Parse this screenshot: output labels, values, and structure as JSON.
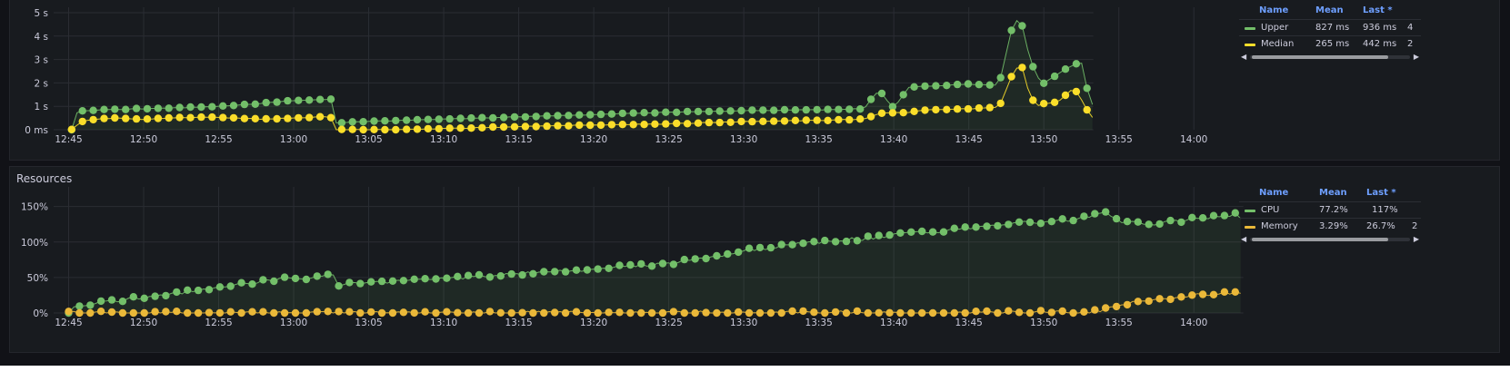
{
  "chart_data": [
    {
      "type": "line",
      "panel": "latency",
      "title": "",
      "xlabel": "",
      "ylabel": "",
      "x_ticks": [
        "12:45",
        "12:50",
        "12:55",
        "13:00",
        "13:05",
        "13:10",
        "13:15",
        "13:20",
        "13:25",
        "13:30",
        "13:35",
        "13:40",
        "13:45",
        "13:50",
        "13:55",
        "14:00"
      ],
      "y_ticks": [
        "0 ms",
        "1 s",
        "2 s",
        "3 s",
        "4 s",
        "5 s"
      ],
      "ylim": [
        0,
        5
      ],
      "y_unit": "s",
      "xlim_minutes": [
        -1,
        78.5
      ],
      "grid": true,
      "legend_placement": "right",
      "series": [
        {
          "name": "Upper",
          "color": "#73bf69",
          "mean": "827 ms",
          "last": "936 ms",
          "last_overflow": "4",
          "points": [
            [
              0.2,
              0.0
            ],
            [
              0.6,
              0.8
            ],
            [
              2,
              0.85
            ],
            [
              5,
              0.9
            ],
            [
              8,
              0.95
            ],
            [
              10,
              1.0
            ],
            [
              12,
              1.08
            ],
            [
              14,
              1.2
            ],
            [
              16,
              1.28
            ],
            [
              17.5,
              1.3
            ],
            [
              17.8,
              0.3
            ],
            [
              20,
              0.35
            ],
            [
              25,
              0.45
            ],
            [
              30,
              0.55
            ],
            [
              35,
              0.65
            ],
            [
              40,
              0.75
            ],
            [
              45,
              0.82
            ],
            [
              50,
              0.85
            ],
            [
              53,
              0.9
            ],
            [
              54,
              1.7
            ],
            [
              54.5,
              1.3
            ],
            [
              55,
              0.92
            ],
            [
              56,
              1.8
            ],
            [
              57,
              1.85
            ],
            [
              60,
              1.95
            ],
            [
              62,
              1.9
            ],
            [
              63,
              4.7
            ],
            [
              63.5,
              4.6
            ],
            [
              64,
              3.2
            ],
            [
              64.5,
              2.3
            ],
            [
              65,
              2.0
            ],
            [
              66,
              2.4
            ],
            [
              67,
              2.8
            ],
            [
              67.5,
              2.9
            ],
            [
              68,
              1.4
            ],
            [
              68.3,
              1.0
            ]
          ]
        },
        {
          "name": "Median",
          "color": "#fade2a",
          "mean": "265 ms",
          "last": "442 ms",
          "last_overflow": "2",
          "points": [
            [
              0.2,
              0.0
            ],
            [
              1,
              0.4
            ],
            [
              3,
              0.5
            ],
            [
              5,
              0.45
            ],
            [
              7,
              0.5
            ],
            [
              9,
              0.55
            ],
            [
              11,
              0.5
            ],
            [
              13,
              0.45
            ],
            [
              15,
              0.5
            ],
            [
              17,
              0.55
            ],
            [
              17.5,
              0.5
            ],
            [
              17.8,
              0.0
            ],
            [
              22,
              0.0
            ],
            [
              25,
              0.05
            ],
            [
              28,
              0.1
            ],
            [
              35,
              0.2
            ],
            [
              40,
              0.25
            ],
            [
              45,
              0.35
            ],
            [
              50,
              0.4
            ],
            [
              53,
              0.45
            ],
            [
              54,
              0.7
            ],
            [
              56,
              0.75
            ],
            [
              57,
              0.85
            ],
            [
              60,
              0.9
            ],
            [
              62,
              0.95
            ],
            [
              63,
              2.5
            ],
            [
              63.5,
              2.8
            ],
            [
              64,
              1.6
            ],
            [
              64.5,
              1.0
            ],
            [
              65,
              1.1
            ],
            [
              66,
              1.2
            ],
            [
              67,
              1.8
            ],
            [
              67.5,
              1.3
            ],
            [
              68,
              0.7
            ],
            [
              68.3,
              0.5
            ]
          ]
        }
      ]
    },
    {
      "type": "line",
      "panel": "resources",
      "title": "Resources",
      "xlabel": "",
      "ylabel": "",
      "x_ticks": [
        "12:45",
        "12:50",
        "12:55",
        "13:00",
        "13:05",
        "13:10",
        "13:15",
        "13:20",
        "13:25",
        "13:30",
        "13:35",
        "13:40",
        "13:45",
        "13:50",
        "13:55",
        "14:00"
      ],
      "y_ticks": [
        "0%",
        "50%",
        "100%",
        "150%"
      ],
      "ylim": [
        0,
        170
      ],
      "y_unit": "%",
      "xlim_minutes": [
        -1,
        78.5
      ],
      "grid": true,
      "legend_placement": "right",
      "series": [
        {
          "name": "CPU",
          "color": "#73bf69",
          "mean": "77.2%",
          "last": "117%",
          "last_overflow": "",
          "points": [
            [
              0.0,
              2
            ],
            [
              0.5,
              10
            ],
            [
              2,
              15
            ],
            [
              5,
              22
            ],
            [
              8,
              30
            ],
            [
              10,
              36
            ],
            [
              12,
              42
            ],
            [
              14,
              48
            ],
            [
              16,
              50
            ],
            [
              17.8,
              55
            ],
            [
              18,
              40
            ],
            [
              20,
              42
            ],
            [
              25,
              48
            ],
            [
              30,
              55
            ],
            [
              35,
              62
            ],
            [
              40,
              70
            ],
            [
              43,
              80
            ],
            [
              45,
              88
            ],
            [
              48,
              95
            ],
            [
              50,
              100
            ],
            [
              53,
              105
            ],
            [
              55,
              110
            ],
            [
              58,
              115
            ],
            [
              60,
              120
            ],
            [
              62,
              125
            ],
            [
              64,
              128
            ],
            [
              66,
              130
            ],
            [
              68,
              135
            ],
            [
              69,
              145
            ],
            [
              70,
              130
            ],
            [
              72,
              125
            ],
            [
              74,
              130
            ],
            [
              76,
              135
            ],
            [
              78,
              140
            ],
            [
              78.3,
              120
            ]
          ]
        },
        {
          "name": "Memory",
          "color": "#eab839",
          "mean": "3.29%",
          "last": "26.7%",
          "last_overflow": "2",
          "points": [
            [
              0,
              0
            ],
            [
              10,
              0
            ],
            [
              20,
              0
            ],
            [
              30,
              0
            ],
            [
              40,
              0
            ],
            [
              50,
              0.5
            ],
            [
              60,
              0.5
            ],
            [
              68,
              1
            ],
            [
              69,
              5
            ],
            [
              71,
              15
            ],
            [
              72,
              18
            ],
            [
              73,
              20
            ],
            [
              74,
              22
            ],
            [
              75,
              25
            ],
            [
              76,
              27
            ],
            [
              77,
              28
            ],
            [
              78,
              30
            ],
            [
              78.3,
              26
            ]
          ]
        }
      ]
    }
  ],
  "legend_headers": {
    "name": "Name",
    "mean": "Mean",
    "last": "Last *"
  },
  "resources_title": "Resources",
  "icons": {
    "scroll_left": "triangle-left",
    "scroll_right": "triangle-right"
  }
}
